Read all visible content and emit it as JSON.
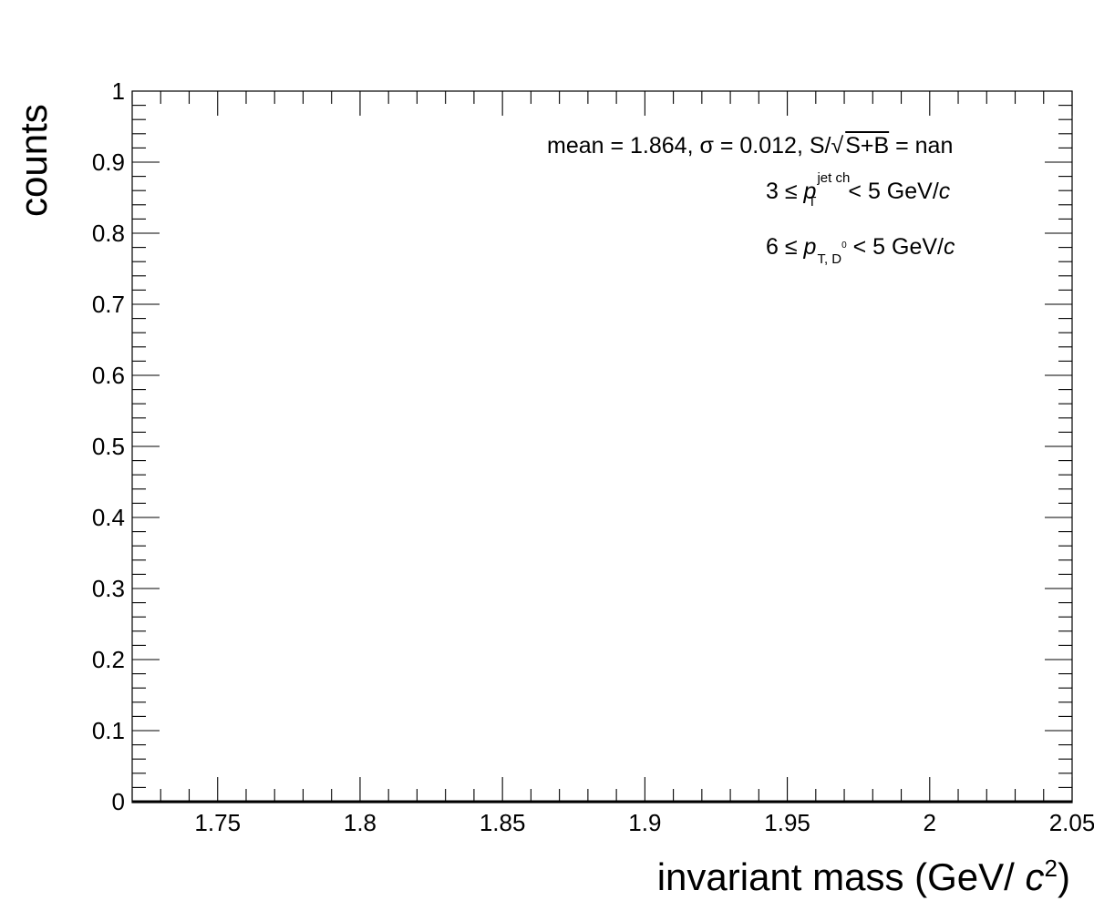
{
  "chart_data": {
    "type": "line",
    "x": [],
    "series": [],
    "xlim": [
      1.72,
      2.05
    ],
    "ylim": [
      0,
      1
    ],
    "xticks": [
      1.75,
      1.8,
      1.85,
      1.9,
      1.95,
      2.0,
      2.05
    ],
    "xtick_labels": [
      "1.75",
      "1.8",
      "1.85",
      "1.9",
      "1.95",
      "2",
      "2.05"
    ],
    "yticks": [
      0,
      0.1,
      0.2,
      0.3,
      0.4,
      0.5,
      0.6,
      0.7,
      0.8,
      0.9,
      1
    ],
    "ytick_labels": [
      "0",
      "0.1",
      "0.2",
      "0.3",
      "0.4",
      "0.5",
      "0.6",
      "0.7",
      "0.8",
      "0.9",
      "1"
    ],
    "xlabel_text": "invariant mass (GeV/ ",
    "xlabel_unit": "c",
    "xlabel_power": "2",
    "xlabel_close": ")",
    "ylabel": "counts",
    "grid": false,
    "annotations": {
      "stats": {
        "prefix": "mean = 1.864, σ  = 0.012, S/√",
        "radicand": "S+B",
        "suffix": " = nan"
      },
      "jet_pt": {
        "prefix": "3 ≤ ",
        "var": "p",
        "sup": "jet ch",
        "sub": "T",
        "suffix": " < 5 GeV/",
        "unit": "c"
      },
      "d0_pt": {
        "prefix": "6 ≤ ",
        "var": "p",
        "sub": "T, D",
        "sub_sup": "0",
        "suffix": " < 5 GeV/",
        "unit": "c"
      }
    }
  }
}
